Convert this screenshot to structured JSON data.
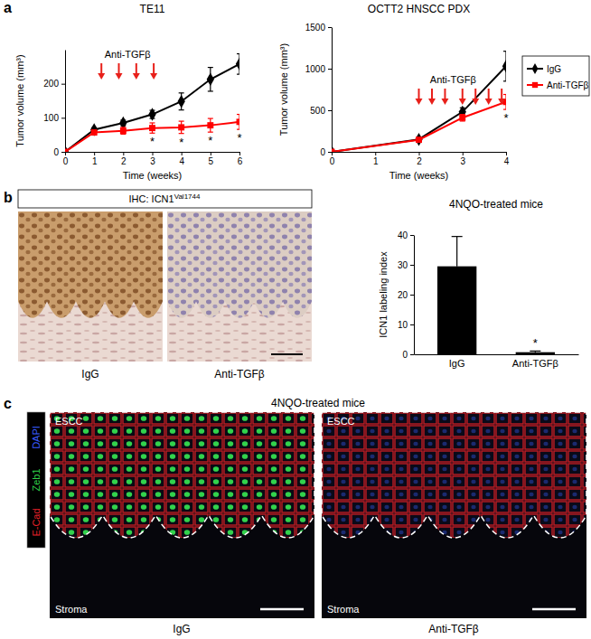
{
  "chart_data": [
    {
      "type": "line",
      "title": "TE11",
      "x_label": "Time (weeks)",
      "y_label": "Tumor volume (mm³)",
      "x": [
        0,
        1,
        2,
        3,
        4,
        5,
        6
      ],
      "xlim": [
        0,
        6
      ],
      "xticks": [
        0,
        1,
        2,
        3,
        4,
        5,
        6
      ],
      "ylim": [
        0,
        300
      ],
      "yticks": [
        0,
        100,
        200
      ],
      "legend": "right",
      "series": [
        {
          "name": "IgG",
          "color": "#000000",
          "marker": "diamond",
          "values": [
            0,
            65,
            85,
            110,
            148,
            213,
            258
          ],
          "errors": [
            0,
            6,
            8,
            12,
            25,
            35,
            30
          ]
        },
        {
          "name": "Anti-TGFβ",
          "color": "#ff0000",
          "marker": "square",
          "values": [
            0,
            57,
            62,
            70,
            72,
            78,
            88
          ],
          "errors": [
            0,
            6,
            10,
            15,
            18,
            20,
            22
          ]
        }
      ],
      "treatment": {
        "label": "Anti-TGFβ",
        "x": [
          1.25,
          1.85,
          2.45,
          3.05
        ]
      },
      "annotations": [
        {
          "x": 3,
          "text": "*"
        },
        {
          "x": 4,
          "text": "*"
        },
        {
          "x": 5,
          "text": "*"
        },
        {
          "x": 6,
          "text": "*"
        }
      ]
    },
    {
      "type": "line",
      "title": "OCTT2 HNSCC PDX",
      "x_label": "Time (weeks)",
      "y_label": "Tumor volume (mm³)",
      "x": [
        0,
        2,
        3,
        4
      ],
      "xlim": [
        0,
        4
      ],
      "xticks": [
        0,
        1,
        2,
        3,
        4
      ],
      "ylim": [
        0,
        1500
      ],
      "yticks": [
        0,
        500,
        1000,
        1500
      ],
      "series": [
        {
          "color": "#000000",
          "marker": "diamond",
          "values": [
            0,
            150,
            480,
            1030
          ],
          "errors": [
            0,
            20,
            50,
            180
          ]
        },
        {
          "color": "#ff0000",
          "marker": "square",
          "values": [
            0,
            145,
            410,
            600
          ],
          "errors": [
            0,
            20,
            40,
            90
          ]
        }
      ],
      "treatment": {
        "label": "Anti-TGFβ",
        "x": [
          2.0,
          2.3,
          2.6,
          3.0,
          3.3,
          3.6,
          3.9
        ]
      },
      "annotations": [
        {
          "x": 4,
          "text": "*"
        }
      ]
    },
    {
      "type": "bar",
      "title": "4NQO-treated mice",
      "y_label": "ICN1 labeling index",
      "categories": [
        "IgG",
        "Anti-TGFβ"
      ],
      "values": [
        29.5,
        0.7
      ],
      "errors": [
        10,
        0.4
      ],
      "color": "#000000",
      "ylim": [
        0,
        40
      ],
      "yticks": [
        0,
        10,
        20,
        30,
        40
      ],
      "annotations": [
        {
          "x": 1,
          "text": "*"
        }
      ]
    }
  ],
  "panel_labels": [
    "a",
    "b",
    "c"
  ],
  "ihc": {
    "label": "IHC: ICN1",
    "label_sup": "Val1744",
    "images": [
      "IgG",
      "Anti-TGFβ"
    ]
  },
  "if_panel": {
    "title": "4NQO-treated mice",
    "stains": [
      {
        "name": "DAPI",
        "color": "#3a5bff"
      },
      {
        "name": "Zeb1",
        "color": "#2fd04a"
      },
      {
        "name": "E-Cad",
        "color": "#e8202a"
      }
    ],
    "regions": [
      "ESCC",
      "Stroma"
    ],
    "images": [
      "IgG",
      "Anti-TGFβ"
    ]
  }
}
